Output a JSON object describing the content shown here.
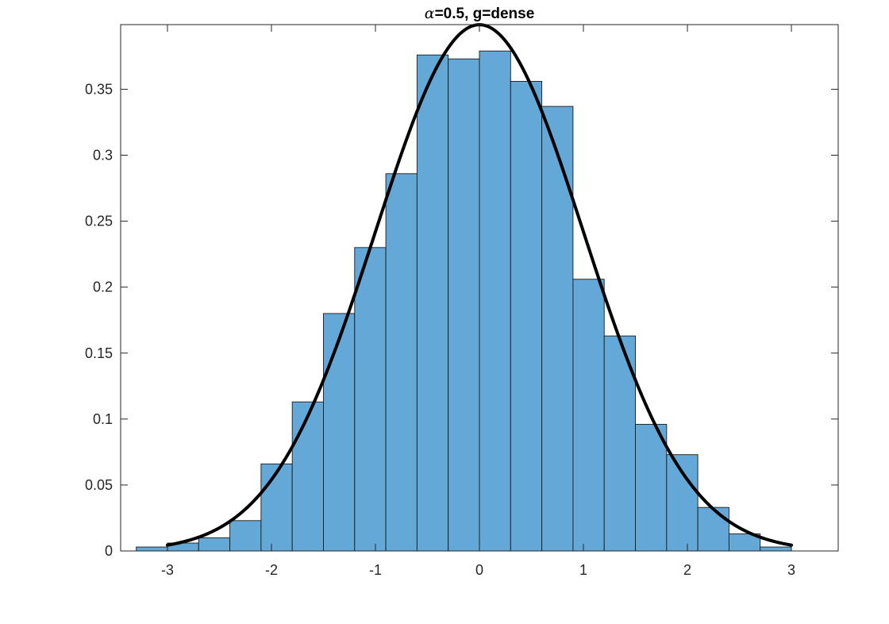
{
  "chart_data": {
    "type": "bar",
    "title": {
      "symbol": "α",
      "text": "=0.5, g=dense"
    },
    "xlabel": "",
    "ylabel": "",
    "xlim": [
      -3.45,
      3.45
    ],
    "ylim": [
      0,
      0.399
    ],
    "grid": false,
    "box": true,
    "x_ticks": [
      {
        "value": -3,
        "label": "-3"
      },
      {
        "value": -2,
        "label": "-2"
      },
      {
        "value": -1,
        "label": "-1"
      },
      {
        "value": 0,
        "label": "0"
      },
      {
        "value": 1,
        "label": "1"
      },
      {
        "value": 2,
        "label": "2"
      },
      {
        "value": 3,
        "label": "3"
      }
    ],
    "y_ticks": [
      {
        "value": 0,
        "label": "0"
      },
      {
        "value": 0.05,
        "label": "0.05"
      },
      {
        "value": 0.1,
        "label": "0.1"
      },
      {
        "value": 0.15,
        "label": "0.15"
      },
      {
        "value": 0.2,
        "label": "0.2"
      },
      {
        "value": 0.25,
        "label": "0.25"
      },
      {
        "value": 0.3,
        "label": "0.3"
      },
      {
        "value": 0.35,
        "label": "0.35"
      }
    ],
    "histogram": {
      "bin_edges": [
        -3.3,
        -3.0,
        -2.7,
        -2.4,
        -2.1,
        -1.8,
        -1.5,
        -1.2,
        -0.9,
        -0.6,
        -0.3,
        0.0,
        0.3,
        0.6,
        0.9,
        1.2,
        1.5,
        1.8,
        2.1,
        2.4,
        2.7,
        3.0
      ],
      "values": [
        0.003,
        0.006,
        0.01,
        0.023,
        0.066,
        0.113,
        0.18,
        0.23,
        0.286,
        0.376,
        0.373,
        0.379,
        0.356,
        0.337,
        0.206,
        0.163,
        0.096,
        0.073,
        0.033,
        0.013,
        0.003
      ],
      "face_color": "#64a8d8",
      "edge_color": "#1a1a1a"
    },
    "curve": {
      "type": "normal_pdf",
      "mean": 0,
      "std": 1,
      "x_range": [
        -3,
        3
      ],
      "color": "#000000"
    }
  }
}
